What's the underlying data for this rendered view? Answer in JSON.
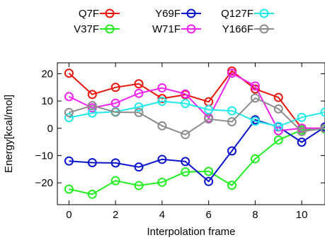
{
  "chart_data": {
    "type": "line",
    "xlabel": "Interpolation frame",
    "ylabel": "Energy[kcal/mol]",
    "xlim": [
      -0.5,
      11
    ],
    "ylim": [
      -28,
      24
    ],
    "xticks": [
      0,
      2,
      4,
      6,
      8,
      10
    ],
    "yticks": [
      20,
      10,
      0,
      -10,
      -20
    ],
    "legend_position": "top, outside plot, 4 columns",
    "x": [
      0,
      1,
      2,
      3,
      4,
      5,
      6,
      7,
      8,
      9,
      10,
      11
    ],
    "series": [
      {
        "name": "Q7F",
        "color": "#e8160c",
        "values": [
          20.2,
          12.4,
          15.0,
          16.3,
          10.9,
          12.3,
          9.7,
          21.0,
          14.4,
          11.3,
          0.0,
          0.0
        ]
      },
      {
        "name": "V37F",
        "color": "#22ee22",
        "values": [
          -22.3,
          -24.2,
          -19.2,
          -21.0,
          -19.8,
          -16.0,
          -15.8,
          -20.9,
          -11.2,
          -4.3,
          -0.6,
          -0.3
        ]
      },
      {
        "name": "Y69F",
        "color": "#0b14c9",
        "values": [
          -12.0,
          -12.6,
          -12.7,
          -14.2,
          -11.4,
          -12.2,
          -19.5,
          -8.3,
          3.1,
          0.5,
          -5.1,
          0.5
        ]
      },
      {
        "name": "W71F",
        "color": "#ee22ee",
        "values": [
          11.6,
          7.5,
          9.2,
          12.8,
          14.8,
          12.6,
          3.8,
          20.2,
          15.5,
          -0.9,
          0.0,
          0.0
        ]
      },
      {
        "name": "Q127F",
        "color": "#22e8e8",
        "values": [
          3.9,
          5.6,
          6.1,
          7.8,
          9.9,
          9.1,
          6.8,
          6.4,
          2.6,
          0.7,
          4.0,
          5.9
        ]
      },
      {
        "name": "Y166F",
        "color": "#8c8c8c",
        "values": [
          5.8,
          8.3,
          5.9,
          5.8,
          0.9,
          -2.3,
          3.4,
          2.4,
          11.1,
          7.1,
          -1.2,
          0.0
        ]
      }
    ]
  }
}
